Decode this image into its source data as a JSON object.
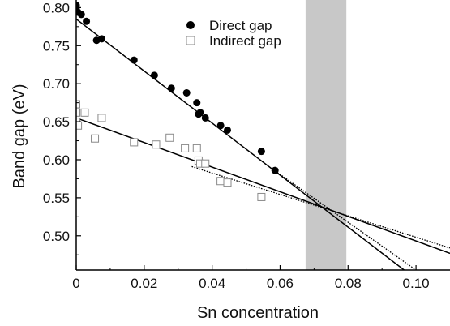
{
  "chart_data": {
    "type": "scatter",
    "xlabel": "Sn concentration",
    "ylabel": "Band gap (eV)",
    "xlim": [
      0,
      0.11
    ],
    "ylim": [
      0.455,
      0.81
    ],
    "xticks": [
      0,
      0.02,
      0.04,
      0.06,
      0.08,
      0.1
    ],
    "xtick_labels": [
      "0",
      "0.02",
      "0.04",
      "0.06",
      "0.08",
      "0.10"
    ],
    "yticks": [
      0.5,
      0.55,
      0.6,
      0.65,
      0.7,
      0.75,
      0.8
    ],
    "ytick_labels": [
      "0.50",
      "0.55",
      "0.60",
      "0.65",
      "0.70",
      "0.75",
      "0.80"
    ],
    "grid": false,
    "legend_position": "top-center",
    "shaded_region": {
      "x": [
        0.0675,
        0.0795
      ],
      "color": "#c8c8c8"
    },
    "series": [
      {
        "name": "Direct gap",
        "marker": "filled-circle",
        "color": "#000000",
        "points": [
          [
            0,
            0.803
          ],
          [
            0,
            0.8
          ],
          [
            0,
            0.797
          ],
          [
            0.0005,
            0.794
          ],
          [
            0.0015,
            0.791
          ],
          [
            0.003,
            0.782
          ],
          [
            0.006,
            0.757
          ],
          [
            0.0075,
            0.759
          ],
          [
            0.017,
            0.731
          ],
          [
            0.023,
            0.711
          ],
          [
            0.028,
            0.694
          ],
          [
            0.0325,
            0.688
          ],
          [
            0.0355,
            0.675
          ],
          [
            0.036,
            0.66
          ],
          [
            0.0365,
            0.662
          ],
          [
            0.038,
            0.655
          ],
          [
            0.0425,
            0.645
          ],
          [
            0.0445,
            0.639
          ],
          [
            0.0545,
            0.611
          ],
          [
            0.0585,
            0.586
          ]
        ]
      },
      {
        "name": "Indirect gap",
        "marker": "open-square",
        "color": "#8a8a8a",
        "points": [
          [
            0,
            0.673
          ],
          [
            0,
            0.662
          ],
          [
            0,
            0.65
          ],
          [
            0.0005,
            0.645
          ],
          [
            0.0025,
            0.662
          ],
          [
            0.0055,
            0.628
          ],
          [
            0.0075,
            0.655
          ],
          [
            0.017,
            0.623
          ],
          [
            0.0235,
            0.62
          ],
          [
            0.0275,
            0.629
          ],
          [
            0.032,
            0.615
          ],
          [
            0.0355,
            0.615
          ],
          [
            0.036,
            0.599
          ],
          [
            0.0365,
            0.595
          ],
          [
            0.038,
            0.595
          ],
          [
            0.0425,
            0.572
          ],
          [
            0.0445,
            0.57
          ],
          [
            0.0545,
            0.551
          ]
        ]
      }
    ],
    "fit_lines": [
      {
        "style": "solid",
        "color": "#000000",
        "from": [
          0,
          0.785
        ],
        "to": [
          0.0965,
          0.455
        ]
      },
      {
        "style": "solid",
        "color": "#000000",
        "from": [
          0,
          0.655
        ],
        "to": [
          0.11,
          0.477
        ]
      },
      {
        "style": "dotted",
        "color": "#000000",
        "from": [
          0.058,
          0.587
        ],
        "to": [
          0.1,
          0.455
        ]
      },
      {
        "style": "dotted",
        "color": "#000000",
        "from": [
          0.034,
          0.591
        ],
        "to": [
          0.11,
          0.484
        ]
      }
    ]
  }
}
